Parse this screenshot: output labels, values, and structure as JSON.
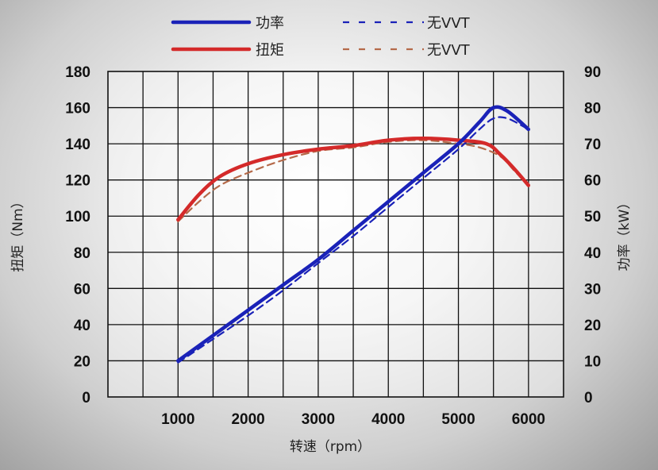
{
  "chart_data": {
    "type": "line",
    "x_ticks": [
      "1000",
      "2000",
      "3000",
      "4000",
      "5000",
      "6000"
    ],
    "y_left_ticks": [
      "0",
      "20",
      "40",
      "60",
      "80",
      "100",
      "120",
      "140",
      "160",
      "180"
    ],
    "y_right_ticks": [
      "0",
      "10",
      "20",
      "30",
      "40",
      "50",
      "60",
      "70",
      "80",
      "90"
    ],
    "xlim": [
      0,
      6500
    ],
    "ylim_left": [
      0,
      180
    ],
    "ylim_right": [
      0,
      90
    ],
    "xlabel": "转速（rpm）",
    "ylabel_left": "扭矩（Nm）",
    "ylabel_right": "功率（kW）",
    "grid": true,
    "legend": [
      {
        "label": "功率",
        "color": "#1a22b8",
        "style": "solid"
      },
      {
        "label": "无VVT",
        "color": "#1a22b8",
        "style": "dashed"
      },
      {
        "label": "扭矩",
        "color": "#d42a2a",
        "style": "solid"
      },
      {
        "label": "无VVT",
        "color": "#b56a4a",
        "style": "dashed"
      }
    ],
    "series": [
      {
        "name": "功率",
        "axis": "right",
        "color": "#1a22b8",
        "dash": false,
        "x": [
          1000,
          1500,
          2000,
          2500,
          3000,
          3500,
          4000,
          4500,
          5000,
          5300,
          5500,
          5700,
          6000
        ],
        "y": [
          10,
          17,
          24,
          31,
          38,
          46,
          54,
          62,
          70,
          76,
          80,
          79,
          74
        ]
      },
      {
        "name": "无VVT",
        "axis": "right",
        "color": "#1a22b8",
        "dash": true,
        "x": [
          1000,
          1500,
          2000,
          2500,
          3000,
          3500,
          4000,
          4500,
          5000,
          5300,
          5500,
          5700,
          6000
        ],
        "y": [
          9.5,
          16,
          22.5,
          29.5,
          37,
          44.5,
          52.5,
          60.5,
          68.5,
          74,
          77,
          77,
          74
        ]
      },
      {
        "name": "扭矩",
        "axis": "left",
        "color": "#d42a2a",
        "dash": false,
        "x": [
          1000,
          1300,
          1600,
          2000,
          2500,
          3000,
          3500,
          4000,
          4500,
          5000,
          5400,
          5600,
          5800,
          6000
        ],
        "y": [
          98,
          112,
          122,
          129,
          134,
          137,
          139,
          142,
          143,
          142,
          140,
          134,
          126,
          117
        ]
      },
      {
        "name": "无VVT",
        "axis": "left",
        "color": "#b56a4a",
        "dash": true,
        "x": [
          1000,
          1300,
          1600,
          2000,
          2500,
          3000,
          3500,
          4000,
          4500,
          5000,
          5300,
          5600,
          5800,
          6000
        ],
        "y": [
          97,
          108,
          117,
          124,
          131,
          136,
          138,
          141,
          142,
          140,
          138,
          133,
          125,
          117
        ]
      }
    ]
  }
}
